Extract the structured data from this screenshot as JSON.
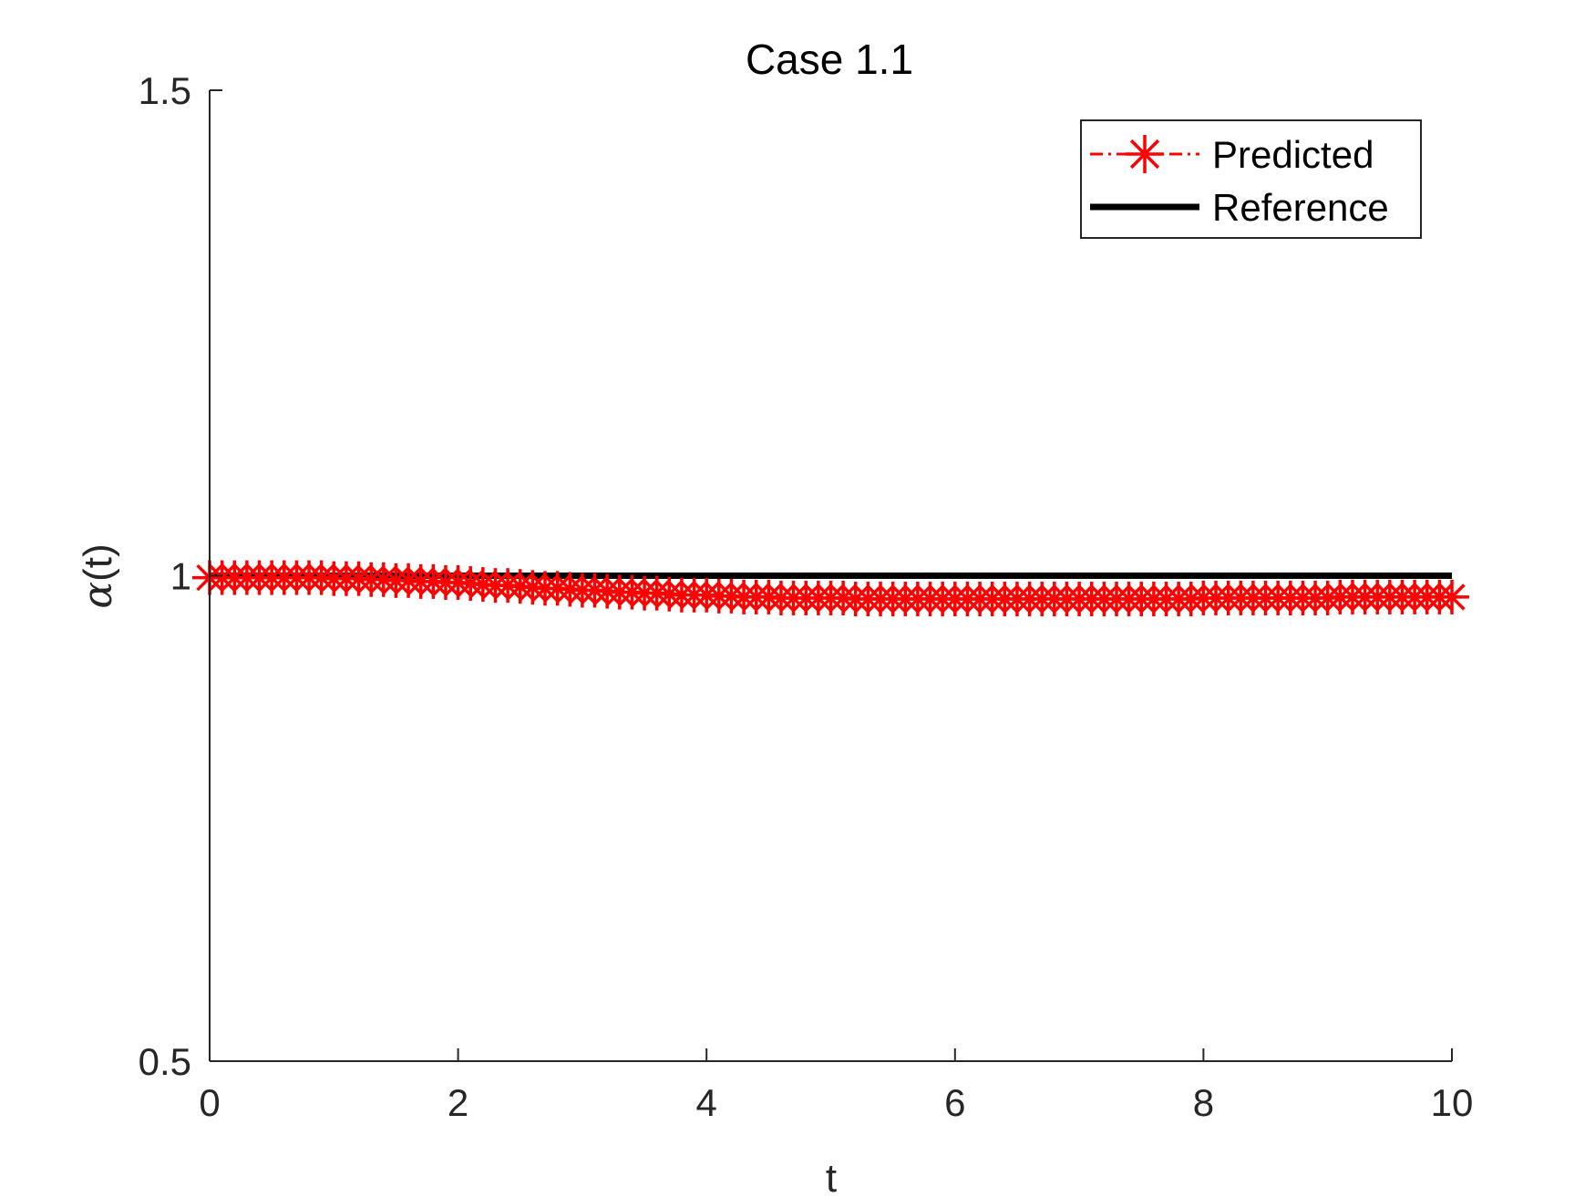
{
  "chart_data": {
    "type": "line",
    "title": "Case 1.1",
    "xlabel": "t",
    "ylabel": "α(t)",
    "xlim": [
      0,
      10
    ],
    "ylim": [
      0.5,
      1.5
    ],
    "x_ticks": [
      "0",
      "2",
      "4",
      "6",
      "8",
      "10"
    ],
    "y_ticks": [
      "0.5",
      "1",
      "1.5"
    ],
    "grid": false,
    "legend_position": "top-right",
    "series": [
      {
        "name": "Predicted",
        "color": "#ff0000",
        "line_style": "dash-dot",
        "marker": "asterisk",
        "x": [
          0,
          0.1,
          0.2,
          0.3,
          0.4,
          0.5,
          0.6,
          0.7,
          0.8,
          0.9,
          1,
          1.1,
          1.2,
          1.3,
          1.4,
          1.5,
          1.6,
          1.7,
          1.8,
          1.9,
          2,
          2.1,
          2.2,
          2.3,
          2.4,
          2.5,
          2.6,
          2.7,
          2.8,
          2.9,
          3,
          3.1,
          3.2,
          3.3,
          3.4,
          3.5,
          3.6,
          3.7,
          3.8,
          3.9,
          4,
          4.1,
          4.2,
          4.3,
          4.4,
          4.5,
          4.6,
          4.7,
          4.8,
          4.9,
          5,
          5.1,
          5.2,
          5.3,
          5.4,
          5.5,
          5.6,
          5.7,
          5.8,
          5.9,
          6,
          6.1,
          6.2,
          6.3,
          6.4,
          6.5,
          6.6,
          6.7,
          6.8,
          6.9,
          7,
          7.1,
          7.2,
          7.3,
          7.4,
          7.5,
          7.6,
          7.7,
          7.8,
          7.9,
          8,
          8.1,
          8.2,
          8.3,
          8.4,
          8.5,
          8.6,
          8.7,
          8.8,
          8.9,
          9,
          9.1,
          9.2,
          9.3,
          9.4,
          9.5,
          9.6,
          9.7,
          9.8,
          9.9,
          10
        ],
        "y": [
          0.998,
          0.998,
          0.998,
          0.998,
          0.998,
          0.998,
          0.998,
          0.998,
          0.998,
          0.998,
          0.997,
          0.997,
          0.997,
          0.996,
          0.996,
          0.995,
          0.995,
          0.994,
          0.994,
          0.993,
          0.993,
          0.992,
          0.991,
          0.99,
          0.99,
          0.989,
          0.988,
          0.987,
          0.987,
          0.986,
          0.985,
          0.985,
          0.984,
          0.983,
          0.983,
          0.982,
          0.982,
          0.981,
          0.98,
          0.98,
          0.98,
          0.979,
          0.979,
          0.978,
          0.978,
          0.978,
          0.977,
          0.977,
          0.977,
          0.977,
          0.977,
          0.977,
          0.976,
          0.976,
          0.976,
          0.976,
          0.976,
          0.976,
          0.976,
          0.976,
          0.976,
          0.976,
          0.976,
          0.976,
          0.976,
          0.976,
          0.976,
          0.976,
          0.976,
          0.976,
          0.976,
          0.976,
          0.976,
          0.976,
          0.976,
          0.976,
          0.976,
          0.976,
          0.976,
          0.976,
          0.977,
          0.977,
          0.977,
          0.977,
          0.977,
          0.977,
          0.977,
          0.977,
          0.977,
          0.977,
          0.977,
          0.978,
          0.978,
          0.978,
          0.978,
          0.978,
          0.978,
          0.978,
          0.978,
          0.978,
          0.978
        ]
      },
      {
        "name": "Reference",
        "color": "#000000",
        "line_style": "solid",
        "x": [
          0,
          10
        ],
        "y": [
          1,
          1
        ]
      }
    ]
  }
}
